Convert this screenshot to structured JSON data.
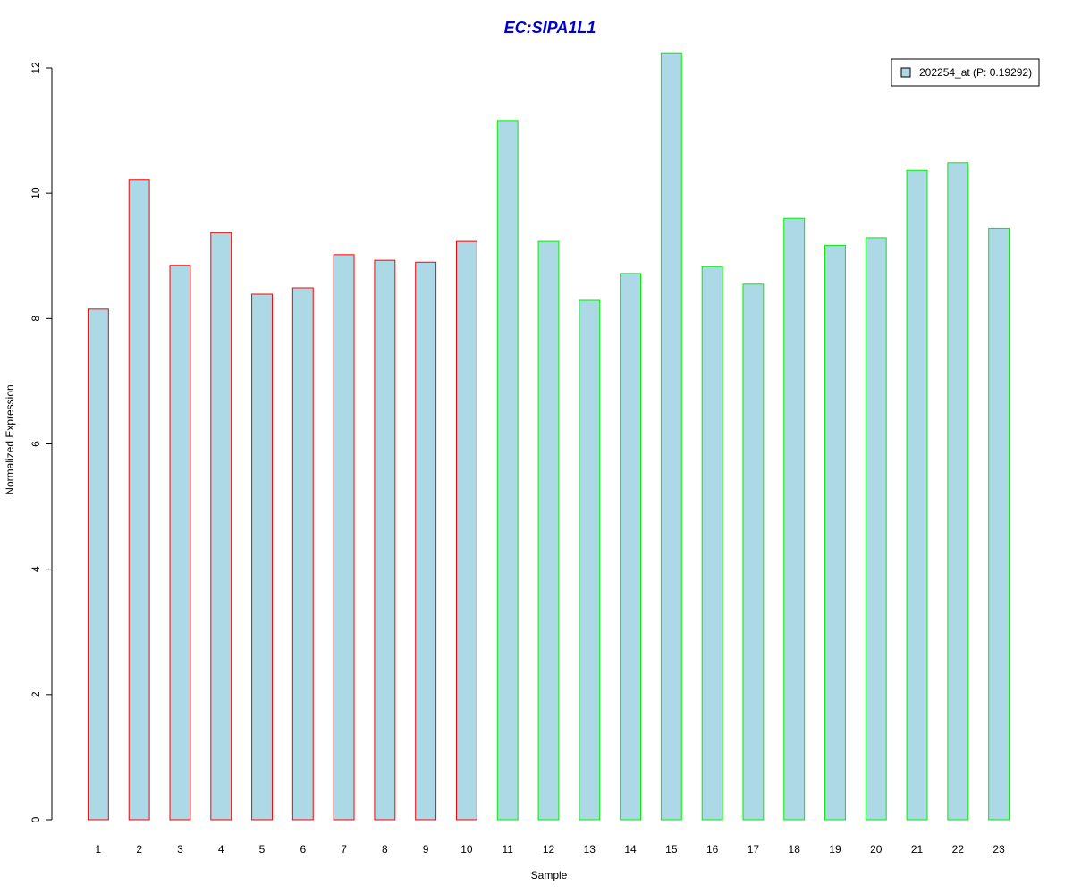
{
  "chart_data": {
    "type": "bar",
    "title": "EC:SIPA1L1",
    "xlabel": "Sample",
    "ylabel": "Normalized Expression",
    "categories": [
      "1",
      "2",
      "3",
      "4",
      "5",
      "6",
      "7",
      "8",
      "9",
      "10",
      "11",
      "12",
      "13",
      "14",
      "15",
      "16",
      "17",
      "18",
      "19",
      "20",
      "21",
      "22",
      "23"
    ],
    "series": [
      {
        "name": "202254_at (P: 0.19292)",
        "values": [
          8.15,
          10.22,
          8.85,
          9.37,
          8.39,
          8.49,
          9.02,
          8.93,
          8.9,
          9.23,
          11.16,
          9.23,
          8.29,
          8.72,
          12.24,
          8.83,
          8.55,
          9.6,
          9.17,
          9.29,
          10.37,
          10.49,
          9.44
        ]
      }
    ],
    "ylim": [
      0,
      12
    ],
    "yticks": [
      0,
      2,
      4,
      6,
      8,
      10,
      12
    ],
    "grid": false,
    "legend_position": "top-right",
    "colors": {
      "title": "#0000cc",
      "bar_fill": "#add8e6",
      "group_1_border": "#ff0000",
      "group_2_border": "#00ee00",
      "axis": "#000000"
    },
    "bar_groups": [
      1,
      1,
      1,
      1,
      1,
      1,
      1,
      1,
      1,
      1,
      2,
      2,
      2,
      2,
      2,
      2,
      2,
      2,
      2,
      2,
      2,
      2,
      2
    ]
  }
}
